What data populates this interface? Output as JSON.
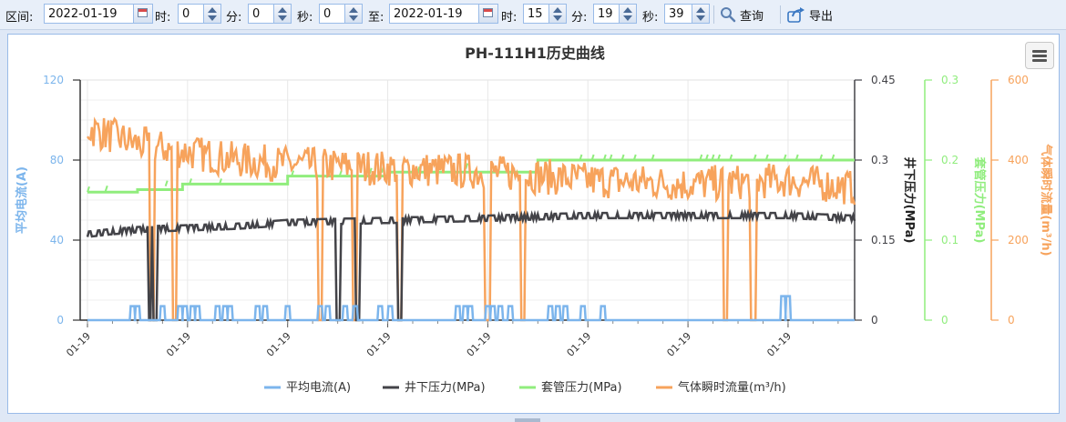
{
  "toolbar": {
    "range_label": "区间:",
    "start_date": "2022-01-19",
    "hour_label": "时:",
    "start_hour": "0",
    "minute_label": "分:",
    "start_minute": "0",
    "second_label": "秒:",
    "start_second": "0",
    "to_label": "至:",
    "end_date": "2022-01-19",
    "end_hour": "15",
    "end_minute": "19",
    "end_second": "39",
    "query_label": "查询",
    "export_label": "导出"
  },
  "chart_data": {
    "type": "line",
    "title": "PH-111H1历史曲线",
    "x_tick_labels": [
      "01-19",
      "01-19",
      "01-19",
      "01-19",
      "01-19",
      "01-19",
      "01-19",
      "01-19"
    ],
    "x_range": [
      0,
      15.33
    ],
    "x_tick_hours": [
      0,
      2,
      4,
      6,
      8,
      10,
      12,
      14
    ],
    "grid": true,
    "legend_position": "bottom",
    "axes": [
      {
        "id": "current",
        "label": "平均电流(A)",
        "side": "left",
        "color": "#7cb5ec",
        "ticks": [
          "0",
          "40",
          "80",
          "120"
        ],
        "min": 0,
        "max": 120
      },
      {
        "id": "down",
        "label": "井下压力(MPa)",
        "side": "right",
        "color": "#434348",
        "ticks": [
          "0",
          "0.15",
          "0.3",
          "0.45"
        ],
        "min": 0,
        "max": 0.45
      },
      {
        "id": "casing",
        "label": "套管压力(MPa)",
        "side": "right",
        "color": "#90ed7d",
        "ticks": [
          "0",
          "0.1",
          "0.2",
          "0.3"
        ],
        "min": 0,
        "max": 0.3
      },
      {
        "id": "gas",
        "label": "气体瞬时流量(m³/h)",
        "side": "right",
        "color": "#f7a35c",
        "ticks": [
          "0",
          "200",
          "400",
          "600"
        ],
        "min": 0,
        "max": 600
      }
    ],
    "series": [
      {
        "name": "平均电流(A)",
        "axis": "current",
        "color": "#7cb5ec",
        "baseline": 0,
        "pulses": [
          [
            0.9,
            7
          ],
          [
            1.0,
            7
          ],
          [
            1.5,
            7
          ],
          [
            1.85,
            7
          ],
          [
            1.95,
            7
          ],
          [
            2.1,
            7
          ],
          [
            2.2,
            7
          ],
          [
            2.6,
            7
          ],
          [
            2.75,
            7
          ],
          [
            2.85,
            7
          ],
          [
            3.4,
            7
          ],
          [
            3.55,
            7
          ],
          [
            4.0,
            7
          ],
          [
            4.65,
            7
          ],
          [
            4.8,
            7
          ],
          [
            5.15,
            7
          ],
          [
            5.35,
            7
          ],
          [
            5.85,
            7
          ],
          [
            6.05,
            7
          ],
          [
            7.4,
            7
          ],
          [
            7.55,
            7
          ],
          [
            7.65,
            7
          ],
          [
            8.0,
            7
          ],
          [
            8.1,
            7
          ],
          [
            8.25,
            7
          ],
          [
            8.45,
            7
          ],
          [
            9.25,
            7
          ],
          [
            9.4,
            7
          ],
          [
            9.55,
            7
          ],
          [
            9.9,
            7
          ],
          [
            10.3,
            7
          ],
          [
            13.9,
            12
          ],
          [
            14.0,
            12
          ]
        ]
      },
      {
        "name": "井下压力(MPa)",
        "axis": "down",
        "color": "#434348",
        "segments": [
          [
            0,
            0.16
          ],
          [
            0.5,
            0.165
          ],
          [
            1.2,
            0.17
          ],
          [
            2.0,
            0.172
          ],
          [
            3.0,
            0.175
          ],
          [
            4.0,
            0.182
          ],
          [
            6.0,
            0.186
          ],
          [
            8.0,
            0.19
          ],
          [
            10.0,
            0.195
          ],
          [
            12.0,
            0.195
          ],
          [
            14.0,
            0.195
          ],
          [
            15.33,
            0.19
          ]
        ],
        "drops": [
          1.25,
          1.35,
          5.0,
          5.4,
          6.25
        ]
      },
      {
        "name": "套管压力(MPa)",
        "axis": "casing",
        "color": "#90ed7d",
        "steps": [
          [
            0,
            0.16
          ],
          [
            1.0,
            0.163
          ],
          [
            1.9,
            0.17
          ],
          [
            3.0,
            0.17
          ],
          [
            4.0,
            0.18
          ],
          [
            5.0,
            0.18
          ],
          [
            6.0,
            0.185
          ],
          [
            7.0,
            0.185
          ],
          [
            9.0,
            0.2
          ],
          [
            15.33,
            0.2
          ]
        ]
      },
      {
        "name": "气体瞬时流量(m³/h)",
        "axis": "gas",
        "color": "#f7a35c",
        "trend": [
          [
            0,
            480
          ],
          [
            1.0,
            440
          ],
          [
            2.0,
            420
          ],
          [
            3.0,
            400
          ],
          [
            4.0,
            390
          ],
          [
            6.0,
            380
          ],
          [
            8.0,
            370
          ],
          [
            10.0,
            350
          ],
          [
            12.0,
            340
          ],
          [
            14.0,
            350
          ],
          [
            15.33,
            330
          ]
        ],
        "drops": [
          1.3,
          1.75,
          4.65,
          5.35,
          6.25,
          8.0,
          8.7,
          12.75,
          13.3
        ]
      }
    ]
  }
}
